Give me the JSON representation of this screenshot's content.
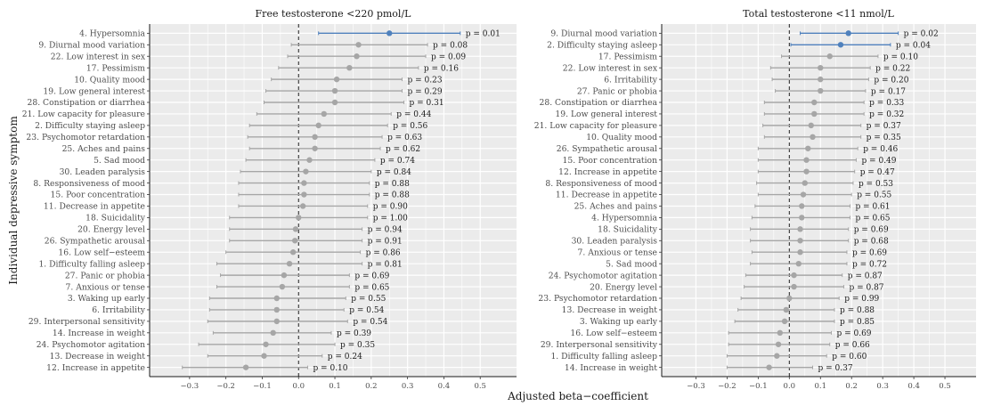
{
  "chart_data": [
    {
      "type": "forest",
      "title": "Free testosterone <220 pmol/L",
      "xlabel": "Adjusted beta−coefficient",
      "ylabel": "Individual depressive symptom",
      "xlim": [
        -0.41,
        0.6
      ],
      "xticks": [
        "−0.3",
        "−0.2",
        "−0.1",
        "0.0",
        "0.1",
        "0.2",
        "0.3",
        "0.4",
        "0.5"
      ],
      "grid": true,
      "colors": {
        "significant": "#4f81bd",
        "nonsignificant": "#a6a6a6",
        "panel_bg": "#ebebeb",
        "grid": "#ffffff"
      },
      "rows": [
        {
          "label": "4. Hypersomnia",
          "est": 0.25,
          "lo": 0.055,
          "hi": 0.445,
          "p": "p = 0.01",
          "sig": true
        },
        {
          "label": "9. Diurnal mood variation",
          "est": 0.165,
          "lo": -0.02,
          "hi": 0.355,
          "p": "p = 0.08",
          "sig": false
        },
        {
          "label": "22. Low interest in sex",
          "est": 0.16,
          "lo": -0.03,
          "hi": 0.35,
          "p": "p = 0.09",
          "sig": false
        },
        {
          "label": "17. Pessimism",
          "est": 0.14,
          "lo": -0.055,
          "hi": 0.33,
          "p": "p = 0.16",
          "sig": false
        },
        {
          "label": "10. Quality mood",
          "est": 0.105,
          "lo": -0.075,
          "hi": 0.285,
          "p": "p = 0.23",
          "sig": false
        },
        {
          "label": "19. Low general interest",
          "est": 0.1,
          "lo": -0.09,
          "hi": 0.285,
          "p": "p = 0.29",
          "sig": false
        },
        {
          "label": "28. Constipation or diarrhea",
          "est": 0.1,
          "lo": -0.095,
          "hi": 0.29,
          "p": "p = 0.31",
          "sig": false
        },
        {
          "label": "21. Low capacity for pleasure",
          "est": 0.07,
          "lo": -0.115,
          "hi": 0.255,
          "p": "p = 0.44",
          "sig": false
        },
        {
          "label": "2. Difficulty staying asleep",
          "est": 0.055,
          "lo": -0.135,
          "hi": 0.245,
          "p": "p = 0.56",
          "sig": false
        },
        {
          "label": "23. Psychomotor retardation",
          "est": 0.045,
          "lo": -0.14,
          "hi": 0.23,
          "p": "p = 0.63",
          "sig": false
        },
        {
          "label": "25. Aches and pains",
          "est": 0.045,
          "lo": -0.135,
          "hi": 0.225,
          "p": "p = 0.62",
          "sig": false
        },
        {
          "label": "5. Sad mood",
          "est": 0.03,
          "lo": -0.145,
          "hi": 0.21,
          "p": "p = 0.74",
          "sig": false
        },
        {
          "label": "30. Leaden paralysis",
          "est": 0.02,
          "lo": -0.16,
          "hi": 0.2,
          "p": "p = 0.84",
          "sig": false
        },
        {
          "label": "8. Responsiveness of mood",
          "est": 0.015,
          "lo": -0.165,
          "hi": 0.195,
          "p": "p = 0.88",
          "sig": false
        },
        {
          "label": "15. Poor concentration",
          "est": 0.015,
          "lo": -0.165,
          "hi": 0.195,
          "p": "p = 0.88",
          "sig": false
        },
        {
          "label": "11. Decrease in appetite",
          "est": 0.012,
          "lo": -0.165,
          "hi": 0.19,
          "p": "p = 0.90",
          "sig": false
        },
        {
          "label": "18. Suicidality",
          "est": 0.0,
          "lo": -0.19,
          "hi": 0.19,
          "p": "p = 1.00",
          "sig": false
        },
        {
          "label": "20. Energy level",
          "est": -0.008,
          "lo": -0.19,
          "hi": 0.175,
          "p": "p = 0.94",
          "sig": false
        },
        {
          "label": "26. Sympathetic arousal",
          "est": -0.01,
          "lo": -0.19,
          "hi": 0.175,
          "p": "p = 0.91",
          "sig": false
        },
        {
          "label": "16. Low self−esteem",
          "est": -0.015,
          "lo": -0.2,
          "hi": 0.17,
          "p": "p = 0.86",
          "sig": false
        },
        {
          "label": "1. Difficulty falling asleep",
          "est": -0.025,
          "lo": -0.225,
          "hi": 0.175,
          "p": "p = 0.81",
          "sig": false
        },
        {
          "label": "27. Panic or phobia",
          "est": -0.04,
          "lo": -0.215,
          "hi": 0.14,
          "p": "p = 0.69",
          "sig": false
        },
        {
          "label": "7. Anxious or tense",
          "est": -0.045,
          "lo": -0.225,
          "hi": 0.14,
          "p": "p = 0.65",
          "sig": false
        },
        {
          "label": "3. Waking up early",
          "est": -0.06,
          "lo": -0.245,
          "hi": 0.13,
          "p": "p = 0.55",
          "sig": false
        },
        {
          "label": "6. Irritability",
          "est": -0.06,
          "lo": -0.245,
          "hi": 0.125,
          "p": "p = 0.54",
          "sig": false
        },
        {
          "label": "29. Interpersonal sensitivity",
          "est": -0.06,
          "lo": -0.25,
          "hi": 0.135,
          "p": "p = 0.54",
          "sig": false
        },
        {
          "label": "14. Increase in weight",
          "est": -0.07,
          "lo": -0.235,
          "hi": 0.09,
          "p": "p = 0.39",
          "sig": false
        },
        {
          "label": "24. Psychomotor agitation",
          "est": -0.09,
          "lo": -0.275,
          "hi": 0.1,
          "p": "p = 0.35",
          "sig": false
        },
        {
          "label": "13. Decrease in weight",
          "est": -0.095,
          "lo": -0.25,
          "hi": 0.065,
          "p": "p = 0.24",
          "sig": false
        },
        {
          "label": "12. Increase in appetite",
          "est": -0.145,
          "lo": -0.32,
          "hi": 0.025,
          "p": "p = 0.10",
          "sig": false
        }
      ]
    },
    {
      "type": "forest",
      "title": "Total testosterone <11 nmol/L",
      "xlabel": "Adjusted beta−coefficient",
      "xlim": [
        -0.41,
        0.6
      ],
      "xticks": [
        "−0.3",
        "−0.2",
        "−0.1",
        "0.0",
        "0.1",
        "0.2",
        "0.3",
        "0.4",
        "0.5"
      ],
      "grid": true,
      "colors": {
        "significant": "#4f81bd",
        "nonsignificant": "#a6a6a6",
        "panel_bg": "#ebebeb",
        "grid": "#ffffff"
      },
      "rows": [
        {
          "label": "9. Diurnal mood variation",
          "est": 0.19,
          "lo": 0.035,
          "hi": 0.35,
          "p": "p = 0.02",
          "sig": true
        },
        {
          "label": "2. Difficulty staying asleep",
          "est": 0.165,
          "lo": 0.005,
          "hi": 0.325,
          "p": "p = 0.04",
          "sig": true
        },
        {
          "label": "17. Pessimism",
          "est": 0.13,
          "lo": -0.025,
          "hi": 0.285,
          "p": "p = 0.10",
          "sig": false
        },
        {
          "label": "22. Low interest in sex",
          "est": 0.1,
          "lo": -0.06,
          "hi": 0.26,
          "p": "p = 0.22",
          "sig": false
        },
        {
          "label": "6. Irritability",
          "est": 0.1,
          "lo": -0.055,
          "hi": 0.255,
          "p": "p = 0.20",
          "sig": false
        },
        {
          "label": "27. Panic or phobia",
          "est": 0.1,
          "lo": -0.045,
          "hi": 0.245,
          "p": "p = 0.17",
          "sig": false
        },
        {
          "label": "28. Constipation or diarrhea",
          "est": 0.08,
          "lo": -0.08,
          "hi": 0.24,
          "p": "p = 0.33",
          "sig": false
        },
        {
          "label": "19. Low general interest",
          "est": 0.08,
          "lo": -0.08,
          "hi": 0.24,
          "p": "p = 0.32",
          "sig": false
        },
        {
          "label": "21. Low capacity for pleasure",
          "est": 0.07,
          "lo": -0.085,
          "hi": 0.23,
          "p": "p = 0.37",
          "sig": false
        },
        {
          "label": "10. Quality mood",
          "est": 0.075,
          "lo": -0.08,
          "hi": 0.23,
          "p": "p = 0.35",
          "sig": false
        },
        {
          "label": "26. Sympathetic arousal",
          "est": 0.06,
          "lo": -0.1,
          "hi": 0.22,
          "p": "p = 0.46",
          "sig": false
        },
        {
          "label": "15. Poor concentration",
          "est": 0.055,
          "lo": -0.1,
          "hi": 0.215,
          "p": "p = 0.49",
          "sig": false
        },
        {
          "label": "12. Increase in appetite",
          "est": 0.055,
          "lo": -0.1,
          "hi": 0.21,
          "p": "p = 0.47",
          "sig": false
        },
        {
          "label": "8. Responsiveness of mood",
          "est": 0.05,
          "lo": -0.105,
          "hi": 0.205,
          "p": "p = 0.53",
          "sig": false
        },
        {
          "label": "11. Decrease in appetite",
          "est": 0.045,
          "lo": -0.1,
          "hi": 0.2,
          "p": "p = 0.55",
          "sig": false
        },
        {
          "label": "25. Aches and pains",
          "est": 0.04,
          "lo": -0.11,
          "hi": 0.195,
          "p": "p = 0.61",
          "sig": false
        },
        {
          "label": "4. Hypersomnia",
          "est": 0.04,
          "lo": -0.12,
          "hi": 0.195,
          "p": "p = 0.65",
          "sig": false
        },
        {
          "label": "18. Suicidality",
          "est": 0.035,
          "lo": -0.125,
          "hi": 0.19,
          "p": "p = 0.69",
          "sig": false
        },
        {
          "label": "30. Leaden paralysis",
          "est": 0.035,
          "lo": -0.125,
          "hi": 0.19,
          "p": "p = 0.68",
          "sig": false
        },
        {
          "label": "7. Anxious or tense",
          "est": 0.035,
          "lo": -0.12,
          "hi": 0.185,
          "p": "p = 0.69",
          "sig": false
        },
        {
          "label": "5. Sad mood",
          "est": 0.03,
          "lo": -0.125,
          "hi": 0.185,
          "p": "p = 0.72",
          "sig": false
        },
        {
          "label": "24. Psychomotor agitation",
          "est": 0.015,
          "lo": -0.14,
          "hi": 0.17,
          "p": "p = 0.87",
          "sig": false
        },
        {
          "label": "20. Energy level",
          "est": 0.015,
          "lo": -0.145,
          "hi": 0.175,
          "p": "p = 0.87",
          "sig": false
        },
        {
          "label": "23. Psychomotor retardation",
          "est": 0.0,
          "lo": -0.155,
          "hi": 0.16,
          "p": "p = 0.99",
          "sig": false
        },
        {
          "label": "13. Decrease in weight",
          "est": -0.01,
          "lo": -0.165,
          "hi": 0.145,
          "p": "p = 0.88",
          "sig": false
        },
        {
          "label": "3. Waking up early",
          "est": -0.015,
          "lo": -0.175,
          "hi": 0.145,
          "p": "p = 0.85",
          "sig": false
        },
        {
          "label": "16. Low self−esteem",
          "est": -0.03,
          "lo": -0.195,
          "hi": 0.135,
          "p": "p = 0.69",
          "sig": false
        },
        {
          "label": "29. Interpersonal sensitivity",
          "est": -0.035,
          "lo": -0.195,
          "hi": 0.13,
          "p": "p = 0.66",
          "sig": false
        },
        {
          "label": "1. Difficulty falling asleep",
          "est": -0.04,
          "lo": -0.2,
          "hi": 0.12,
          "p": "p = 0.60",
          "sig": false
        },
        {
          "label": "14. Increase in weight",
          "est": -0.065,
          "lo": -0.2,
          "hi": 0.075,
          "p": "p = 0.37",
          "sig": false
        }
      ]
    }
  ]
}
